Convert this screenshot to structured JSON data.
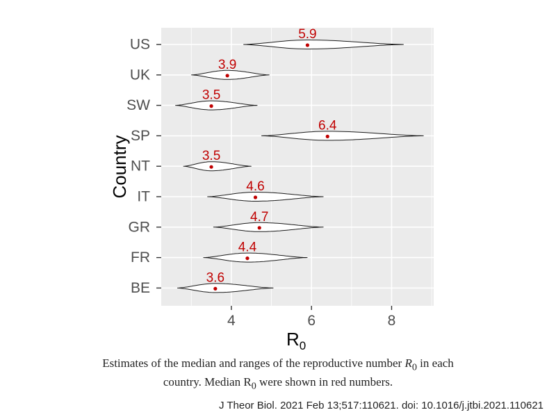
{
  "chart_data": {
    "type": "violin",
    "title": "",
    "xlabel": "R",
    "xlabel_subscript": "0",
    "ylabel": "Country",
    "xlim": [
      2.25,
      9.05
    ],
    "xticks": [
      4,
      6,
      8
    ],
    "grid": true,
    "categories": [
      "US",
      "UK",
      "SW",
      "SP",
      "NT",
      "IT",
      "GR",
      "FR",
      "BE"
    ],
    "series": [
      {
        "category": "US",
        "median": 5.9,
        "median_label": "5.9",
        "min": 4.3,
        "max": 8.3
      },
      {
        "category": "UK",
        "median": 3.9,
        "median_label": "3.9",
        "min": 3.0,
        "max": 4.95
      },
      {
        "category": "SW",
        "median": 3.5,
        "median_label": "3.5",
        "min": 2.6,
        "max": 4.65
      },
      {
        "category": "SP",
        "median": 6.4,
        "median_label": "6.4",
        "min": 4.75,
        "max": 8.8
      },
      {
        "category": "NT",
        "median": 3.5,
        "median_label": "3.5",
        "min": 2.8,
        "max": 4.5
      },
      {
        "category": "IT",
        "median": 4.6,
        "median_label": "4.6",
        "min": 3.4,
        "max": 6.3
      },
      {
        "category": "GR",
        "median": 4.7,
        "median_label": "4.7",
        "min": 3.55,
        "max": 6.3
      },
      {
        "category": "FR",
        "median": 4.4,
        "median_label": "4.4",
        "min": 3.3,
        "max": 5.9
      },
      {
        "category": "BE",
        "median": 3.6,
        "median_label": "3.6",
        "min": 2.65,
        "max": 5.05
      }
    ],
    "colors": {
      "panel_background": "#ebebeb",
      "gridline": "#ffffff",
      "median": "#c00000",
      "violin_fill": "#ffffff",
      "violin_stroke": "#1a1a1a"
    }
  },
  "caption": {
    "line1_prefix": "Estimates of the median and ranges of the reproductive number ",
    "r_symbol": "R",
    "r_subscript": "0",
    "line1_suffix": " in each",
    "line2_prefix": "country. Median R",
    "line2_subscript": "0",
    "line2_suffix": " were shown in red numbers."
  },
  "citation": "J Theor Biol. 2021 Feb 13;517:110621. doi: 10.1016/j.jtbi.2021.110621"
}
